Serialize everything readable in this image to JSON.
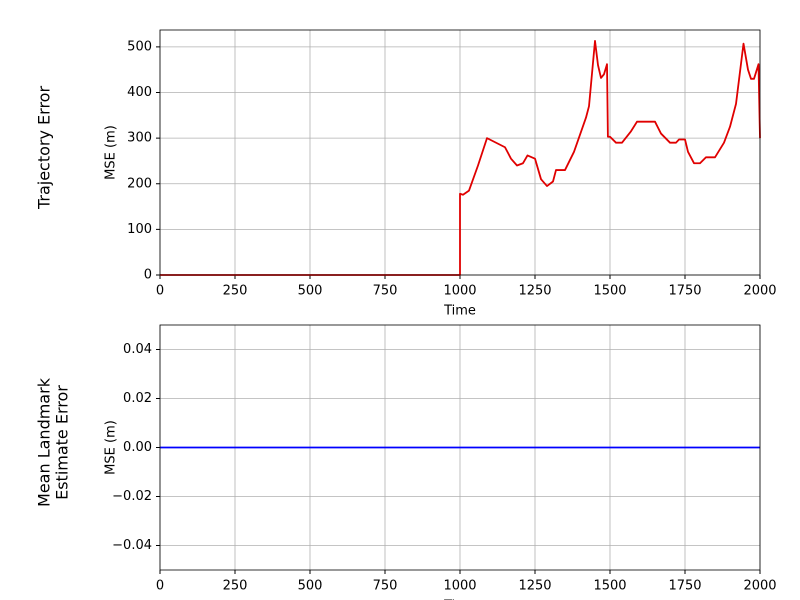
{
  "chart_data": [
    {
      "type": "line",
      "row_label": [
        "Trajectory Error"
      ],
      "ylabel": "MSE (m)",
      "xlabel": "Time",
      "x": [
        0,
        1000,
        1000,
        1010,
        1030,
        1060,
        1090,
        1150,
        1170,
        1190,
        1210,
        1225,
        1250,
        1270,
        1290,
        1310,
        1320,
        1350,
        1380,
        1420,
        1430,
        1450,
        1460,
        1470,
        1480,
        1490,
        1493,
        1500,
        1520,
        1540,
        1570,
        1590,
        1650,
        1670,
        1700,
        1720,
        1730,
        1750,
        1760,
        1780,
        1800,
        1820,
        1850,
        1880,
        1900,
        1920,
        1945,
        1960,
        1970,
        1980,
        1995,
        2000
      ],
      "series": [
        {
          "color": "#e00000",
          "values": [
            0,
            0,
            178,
            176,
            185,
            240,
            300,
            280,
            255,
            240,
            245,
            262,
            255,
            210,
            195,
            205,
            230,
            230,
            270,
            345,
            370,
            513,
            460,
            432,
            440,
            462,
            303,
            303,
            290,
            290,
            315,
            336,
            336,
            310,
            290,
            290,
            297,
            297,
            270,
            245,
            245,
            258,
            258,
            290,
            325,
            375,
            507,
            450,
            430,
            430,
            462,
            300
          ]
        }
      ],
      "xlim": [
        0,
        2000
      ],
      "xticks": [
        0,
        250,
        500,
        750,
        1000,
        1250,
        1500,
        1750,
        2000
      ],
      "ylim": [
        0,
        537
      ],
      "yticks": [
        0,
        100,
        200,
        300,
        400,
        500
      ],
      "grid": true
    },
    {
      "type": "line",
      "row_label": [
        "Mean Landmark",
        "Estimate Error"
      ],
      "ylabel": "MSE (m)",
      "xlabel": "Time",
      "x": [
        0,
        2000
      ],
      "series": [
        {
          "color": "#0000ff",
          "values": [
            0,
            0
          ]
        }
      ],
      "xlim": [
        0,
        2000
      ],
      "xticks": [
        0,
        250,
        500,
        750,
        1000,
        1250,
        1500,
        1750,
        2000
      ],
      "ylim": [
        -0.05,
        0.05
      ],
      "yticks": [
        {
          "value": -0.04,
          "label": "−0.04"
        },
        {
          "value": -0.02,
          "label": "−0.02"
        },
        {
          "value": 0,
          "label": "0.00"
        },
        {
          "value": 0.02,
          "label": "0.02"
        },
        {
          "value": 0.04,
          "label": "0.04"
        }
      ],
      "grid": true
    }
  ]
}
